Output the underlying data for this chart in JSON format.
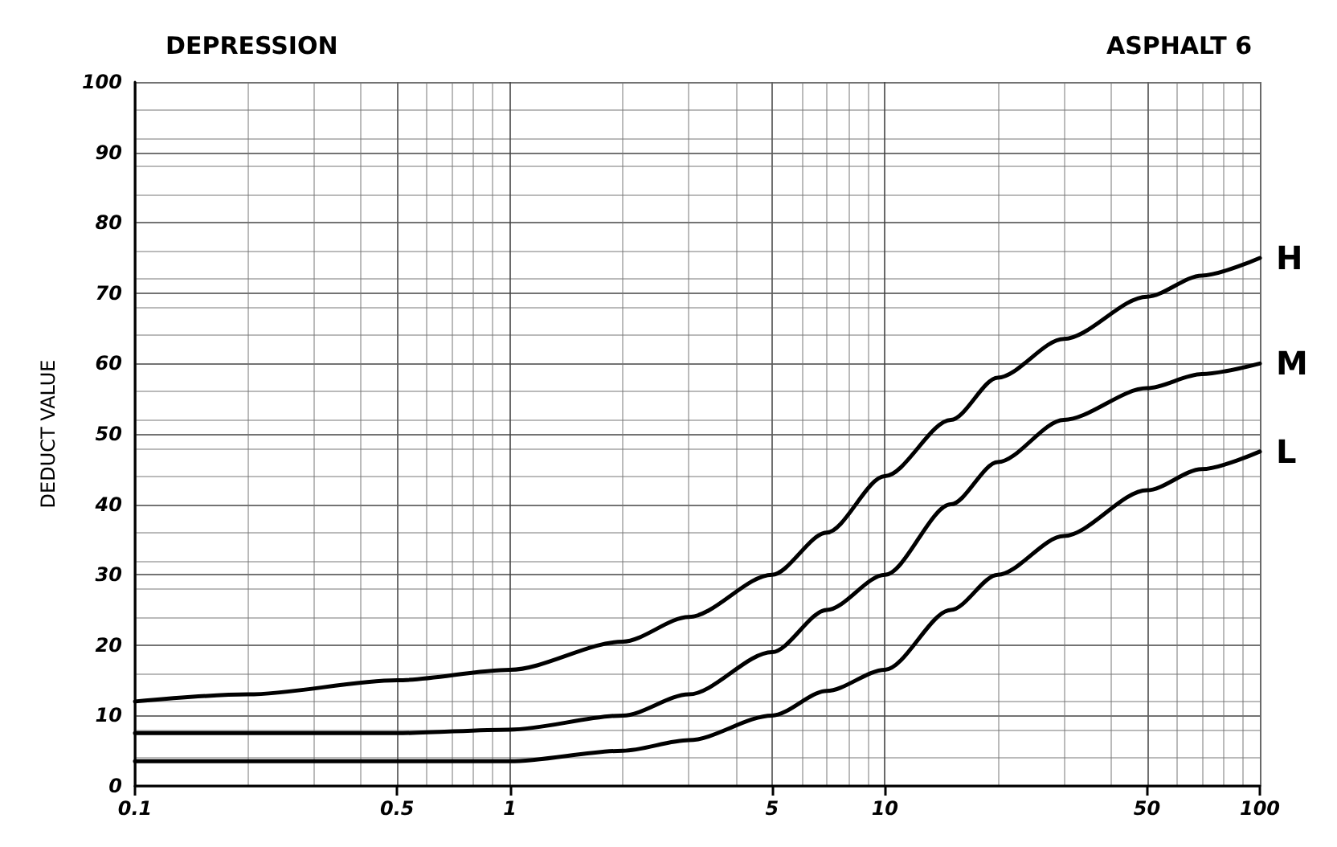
{
  "chart_data": {
    "type": "line",
    "title": "DEPRESSION",
    "subtitle": "ASPHALT 6",
    "ylabel": "DEDUCT VALUE",
    "x": [
      0.1,
      0.2,
      0.5,
      1,
      2,
      3,
      5,
      7,
      10,
      15,
      20,
      30,
      50,
      70,
      100
    ],
    "series": [
      {
        "name": "H",
        "color": "#000000",
        "values": [
          12,
          13,
          15,
          16.5,
          20.5,
          24,
          30,
          36,
          44,
          52,
          58,
          63.5,
          69.5,
          72.5,
          75
        ]
      },
      {
        "name": "M",
        "color": "#000000",
        "values": [
          7.5,
          7.5,
          7.5,
          8,
          10,
          13,
          19,
          25,
          30,
          40,
          46,
          52,
          56.5,
          58.5,
          60
        ]
      },
      {
        "name": "L",
        "color": "#000000",
        "values": [
          3.5,
          3.5,
          3.5,
          3.5,
          5,
          6.5,
          10,
          13.5,
          16.5,
          25,
          30,
          35.5,
          42,
          45,
          47.5
        ]
      }
    ],
    "log": "x",
    "xlim": [
      0.1,
      100
    ],
    "xticks": [
      0.1,
      0.5,
      1,
      5,
      10,
      50,
      100
    ],
    "ylim": [
      0,
      100
    ],
    "yticks": [
      0,
      10,
      20,
      30,
      40,
      50,
      60,
      70,
      80,
      90,
      100
    ],
    "grid": true,
    "legend": false,
    "marker": "none",
    "line_style": "solid"
  }
}
